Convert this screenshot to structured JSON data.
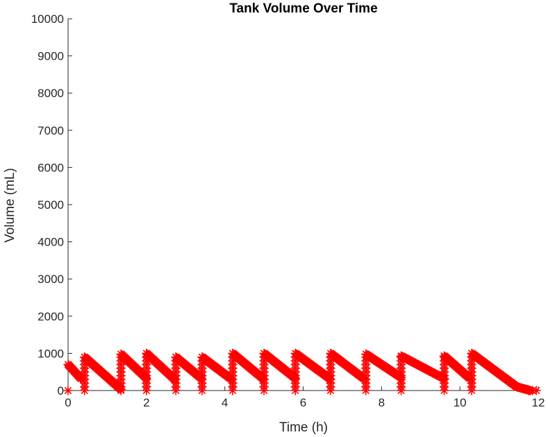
{
  "chart_data": {
    "type": "scatter",
    "title": "Tank Volume Over Time",
    "xlabel": "Time (h)",
    "ylabel": "Volume (mL)",
    "xlim": [
      0,
      12
    ],
    "ylim": [
      0,
      10000
    ],
    "xticks": [
      0,
      2,
      4,
      6,
      8,
      10,
      12
    ],
    "yticks": [
      0,
      1000,
      2000,
      3000,
      4000,
      5000,
      6000,
      7000,
      8000,
      9000,
      10000
    ],
    "grid": false,
    "marker": "asterisk",
    "color": "#ff0000",
    "series": [
      {
        "segments": [
          {
            "t0": 0.0,
            "v0": 700,
            "t1": 0.33,
            "v1": 320
          },
          {
            "t0": 0.42,
            "v0": 900,
            "t1": 1.35,
            "v1": 30
          },
          {
            "t0": 1.35,
            "v0": 980,
            "t1": 2.0,
            "v1": 330
          },
          {
            "t0": 2.0,
            "v0": 1000,
            "t1": 2.72,
            "v1": 300
          },
          {
            "t0": 2.75,
            "v0": 900,
            "t1": 3.4,
            "v1": 330
          },
          {
            "t0": 3.42,
            "v0": 900,
            "t1": 4.15,
            "v1": 320
          },
          {
            "t0": 4.2,
            "v0": 1000,
            "t1": 5.0,
            "v1": 300
          },
          {
            "t0": 5.0,
            "v0": 1000,
            "t1": 5.8,
            "v1": 330
          },
          {
            "t0": 5.8,
            "v0": 1000,
            "t1": 6.68,
            "v1": 320
          },
          {
            "t0": 6.7,
            "v0": 1000,
            "t1": 7.55,
            "v1": 320
          },
          {
            "t0": 7.6,
            "v0": 980,
            "t1": 8.5,
            "v1": 350
          },
          {
            "t0": 8.5,
            "v0": 930,
            "t1": 9.6,
            "v1": 320
          },
          {
            "t0": 9.6,
            "v0": 930,
            "t1": 10.25,
            "v1": 330
          },
          {
            "t0": 10.3,
            "v0": 1000,
            "t1": 11.45,
            "v1": 100
          },
          {
            "t0": 11.45,
            "v0": 100,
            "t1": 11.8,
            "v1": 0
          }
        ],
        "refill_times": [
          0.42,
          1.35,
          2.0,
          2.75,
          3.42,
          4.2,
          5.0,
          5.8,
          6.7,
          7.6,
          8.5,
          9.6,
          10.3
        ],
        "zero_points": [
          [
            0.0,
            0
          ],
          [
            11.75,
            0
          ],
          [
            11.85,
            0
          ],
          [
            11.95,
            0
          ]
        ]
      }
    ]
  }
}
